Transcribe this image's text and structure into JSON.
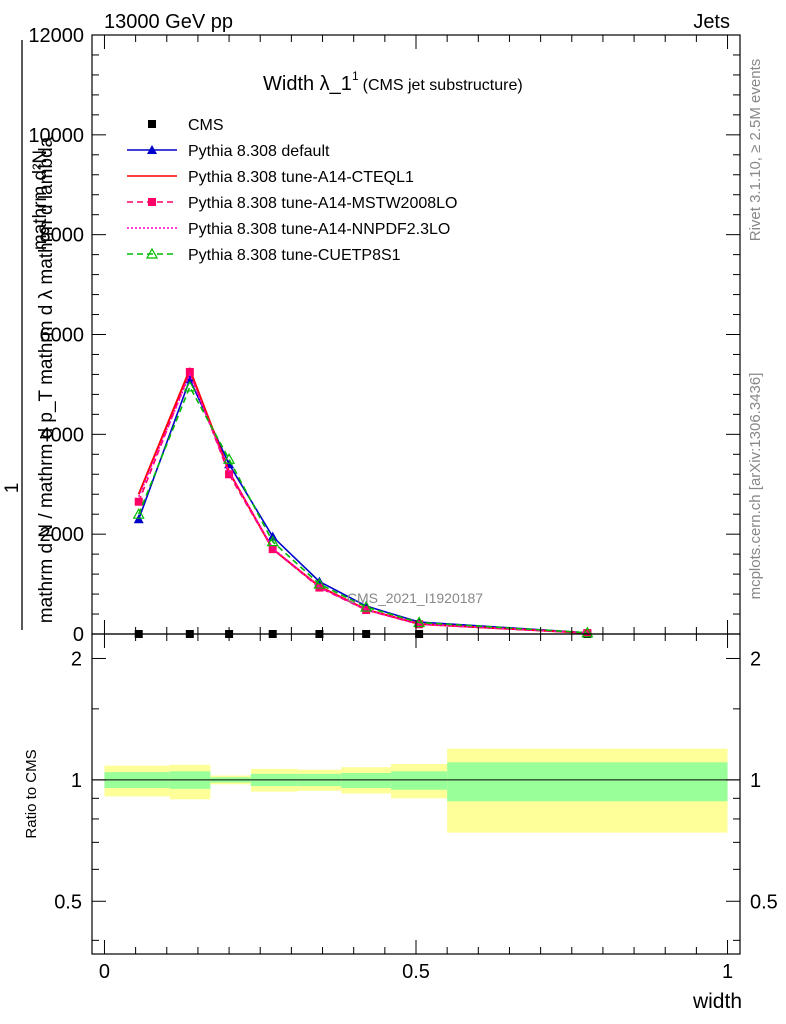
{
  "header": {
    "beam": "13000 GeV pp",
    "category": "Jets",
    "right_label_top": "Rivet 3.1.10, ≥ 2.5M events",
    "right_label_bottom": "mcplots.cern.ch [arXiv:1306.3436]"
  },
  "title": {
    "main": "Width λ_1",
    "superscript": "1",
    "sub": "(CMS jet substructure)"
  },
  "watermark": "CMS_2021_I1920187",
  "chart_data": [
    {
      "type": "line",
      "panel": "main",
      "xlim": [
        -0.02,
        1.02
      ],
      "ylim": [
        0,
        12000
      ],
      "yticks": [
        0,
        2000,
        4000,
        6000,
        8000,
        10000,
        12000
      ],
      "ytick_labels": [
        "0",
        "2000",
        "4000",
        "6000",
        "8000",
        "10000",
        "12000"
      ],
      "ylabel_numerator": "mathrm d²N",
      "ylabel_prefix": "1",
      "ylabel_denominator": "mathrm d N / mathrm d p_T mathrm d λ mathrm d lambda",
      "x": [
        0.055,
        0.137,
        0.2,
        0.27,
        0.345,
        0.42,
        0.505,
        0.775
      ],
      "legend_placement": "top-left",
      "series": [
        {
          "name": "CMS",
          "color": "#000000",
          "style": "marker",
          "marker": "square",
          "values": [
            0,
            0,
            0,
            0,
            0,
            0,
            0,
            0
          ]
        },
        {
          "name": "Pythia 8.308 default",
          "color": "#0000cc",
          "style": "solid",
          "marker": "triangle",
          "values": [
            2300,
            5100,
            3400,
            1950,
            1050,
            560,
            240,
            25
          ]
        },
        {
          "name": "Pythia 8.308 tune-A14-CTEQL1",
          "color": "#ff0000",
          "style": "solid",
          "marker": "none",
          "values": [
            2800,
            5300,
            3250,
            1700,
            950,
            490,
            200,
            20
          ]
        },
        {
          "name": "Pythia 8.308 tune-A14-MSTW2008LO",
          "color": "#ff0066",
          "style": "dashed",
          "marker": "square",
          "values": [
            2650,
            5250,
            3200,
            1700,
            930,
            480,
            195,
            20
          ]
        },
        {
          "name": "Pythia 8.308 tune-A14-NNPDF2.3LO",
          "color": "#ff00cc",
          "style": "dotted",
          "marker": "none",
          "values": [
            2750,
            5200,
            3250,
            1720,
            940,
            485,
            200,
            20
          ]
        },
        {
          "name": "Pythia 8.308 tune-CUETP8S1",
          "color": "#00bb00",
          "style": "dashed",
          "marker": "triangle-open",
          "values": [
            2400,
            4950,
            3500,
            1850,
            1000,
            540,
            230,
            25
          ]
        }
      ]
    },
    {
      "type": "area",
      "panel": "ratio",
      "xlabel": "width",
      "ylabel": "Ratio to CMS",
      "xlim": [
        -0.02,
        1.02
      ],
      "ylim": [
        0.37,
        2.3
      ],
      "xticks": [
        0,
        0.5,
        1
      ],
      "xtick_labels": [
        "0",
        "0.5",
        "1"
      ],
      "yticks": [
        0.5,
        1,
        2
      ],
      "ytick_labels": [
        "0.5",
        "1",
        "2"
      ],
      "reference_line": 1,
      "bin_edges": [
        0.0,
        0.105,
        0.17,
        0.235,
        0.31,
        0.38,
        0.46,
        0.55,
        1.0
      ],
      "stat_band_color": "#99ff99",
      "total_band_color": "#ffff99",
      "stat_band": [
        [
          0.955,
          1.045
        ],
        [
          0.95,
          1.05
        ],
        [
          0.985,
          1.015
        ],
        [
          0.965,
          1.035
        ],
        [
          0.965,
          1.035
        ],
        [
          0.955,
          1.04
        ],
        [
          0.945,
          1.05
        ],
        [
          0.885,
          1.105
        ]
      ],
      "total_band": [
        [
          0.91,
          1.085
        ],
        [
          0.895,
          1.09
        ],
        [
          0.975,
          1.025
        ],
        [
          0.935,
          1.065
        ],
        [
          0.94,
          1.06
        ],
        [
          0.925,
          1.075
        ],
        [
          0.9,
          1.095
        ],
        [
          0.74,
          1.195
        ]
      ]
    }
  ]
}
